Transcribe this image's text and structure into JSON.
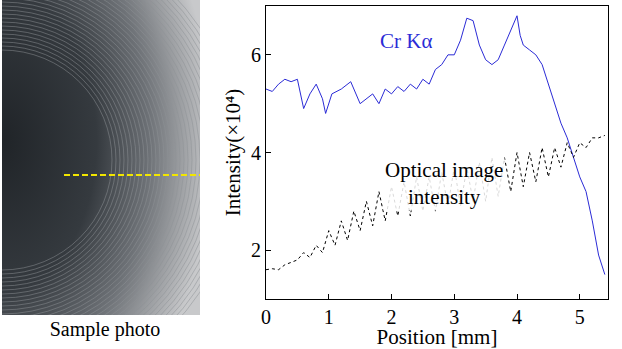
{
  "chart_data": {
    "type": "line",
    "xlabel": "Position [mm]",
    "ylabel": "Intensity(×10⁴)",
    "xlim": [
      0,
      5.45
    ],
    "xticks": [
      0,
      1,
      2,
      3,
      4,
      5
    ],
    "ylim": [
      1,
      7
    ],
    "yticks": [
      2,
      4,
      6
    ],
    "grid": false,
    "series": [
      {
        "name": "Cr Kα",
        "color": "#2b2bd6",
        "line_style": "solid",
        "x": [
          0,
          0.1,
          0.2,
          0.3,
          0.4,
          0.5,
          0.6,
          0.7,
          0.8,
          0.9,
          0.95,
          1.05,
          1.2,
          1.35,
          1.5,
          1.6,
          1.7,
          1.8,
          1.9,
          2.0,
          2.1,
          2.2,
          2.3,
          2.4,
          2.5,
          2.6,
          2.7,
          2.8,
          2.9,
          3.0,
          3.1,
          3.2,
          3.3,
          3.4,
          3.5,
          3.6,
          3.7,
          3.8,
          3.9,
          4.0,
          4.05,
          4.1,
          4.2,
          4.3,
          4.4,
          4.5,
          4.6,
          4.7,
          4.8,
          4.9,
          5.0,
          5.1,
          5.2,
          5.3,
          5.4
        ],
        "values": [
          5.3,
          5.25,
          5.4,
          5.5,
          5.45,
          5.5,
          4.9,
          5.2,
          5.4,
          5.1,
          4.8,
          5.2,
          5.3,
          5.45,
          5.0,
          5.1,
          5.2,
          5.0,
          5.3,
          5.2,
          5.35,
          5.25,
          5.4,
          5.3,
          5.5,
          5.4,
          5.7,
          5.8,
          6.0,
          6.0,
          6.3,
          6.75,
          6.7,
          6.2,
          5.9,
          5.8,
          5.9,
          6.2,
          6.5,
          6.8,
          6.4,
          6.2,
          6.1,
          6.0,
          5.8,
          5.4,
          5.0,
          4.6,
          4.3,
          3.9,
          3.5,
          3.2,
          2.6,
          1.9,
          1.5
        ]
      },
      {
        "name": "Optical image intensity",
        "color": "#000000",
        "line_style": "dotted",
        "x": [
          0,
          0.1,
          0.2,
          0.3,
          0.4,
          0.5,
          0.6,
          0.7,
          0.8,
          0.9,
          1.0,
          1.1,
          1.2,
          1.3,
          1.4,
          1.5,
          1.6,
          1.7,
          1.8,
          1.9,
          2.0,
          2.1,
          2.2,
          2.3,
          2.4,
          2.5,
          2.6,
          2.7,
          2.8,
          2.9,
          3.0,
          3.1,
          3.2,
          3.3,
          3.4,
          3.5,
          3.6,
          3.7,
          3.8,
          3.9,
          4.0,
          4.1,
          4.2,
          4.3,
          4.4,
          4.5,
          4.6,
          4.7,
          4.8,
          4.9,
          5.0,
          5.1,
          5.2,
          5.3,
          5.4
        ],
        "values": [
          1.6,
          1.62,
          1.6,
          1.7,
          1.75,
          1.8,
          1.95,
          1.85,
          2.1,
          1.95,
          2.4,
          2.1,
          2.6,
          2.2,
          2.8,
          2.4,
          3.0,
          2.5,
          3.2,
          2.6,
          3.3,
          2.7,
          3.4,
          2.7,
          3.5,
          2.8,
          3.5,
          2.8,
          3.6,
          2.9,
          3.7,
          2.9,
          3.7,
          3.0,
          3.8,
          3.0,
          3.9,
          3.1,
          3.9,
          3.2,
          4.0,
          3.3,
          4.0,
          3.4,
          4.1,
          3.5,
          4.1,
          3.7,
          4.2,
          3.9,
          4.2,
          4.1,
          4.3,
          4.3,
          4.35
        ]
      }
    ]
  },
  "photo": {
    "caption": "Sample photo"
  }
}
